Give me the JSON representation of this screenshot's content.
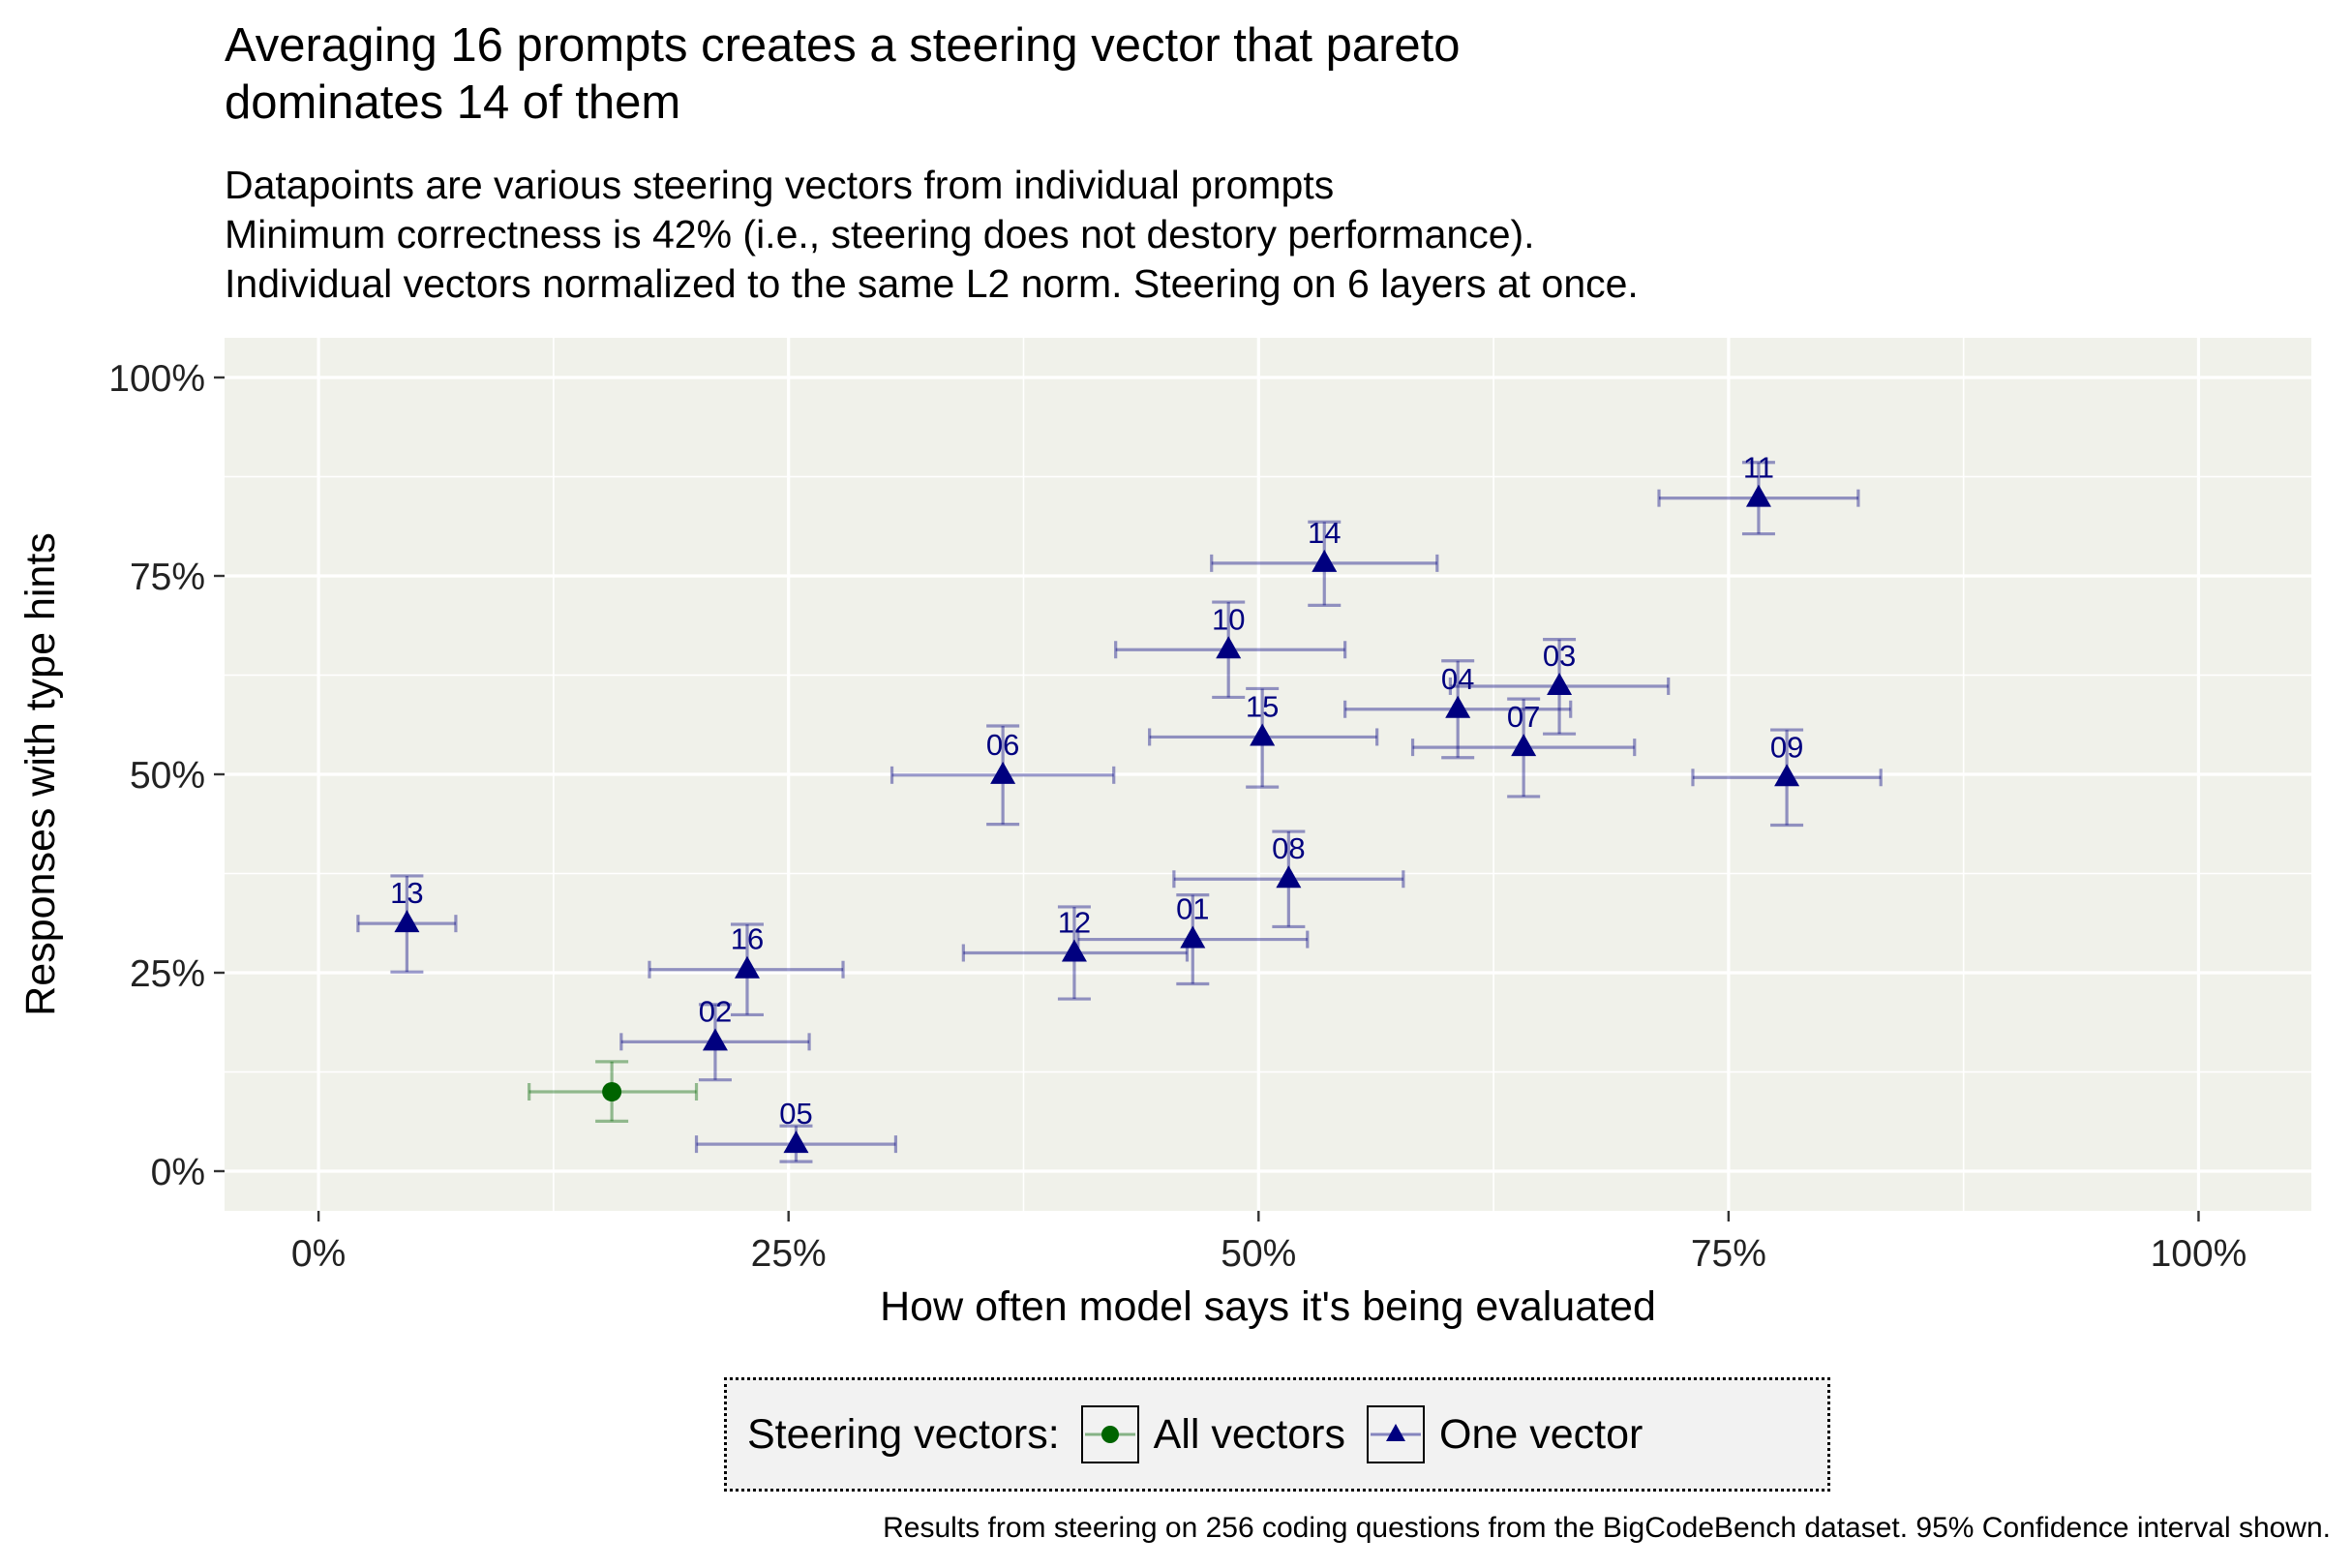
{
  "title_lines": [
    "Averaging 16 prompts creates a steering vector that pareto",
    "dominates 14 of them"
  ],
  "subtitle_lines": [
    "Datapoints are various steering vectors from individual prompts",
    "Minimum correctness is 42% (i.e., steering does not destory performance).",
    "Individual vectors normalized to the same L2 norm. Steering on 6 layers at once."
  ],
  "legend": {
    "title": "Steering vectors:",
    "items": [
      {
        "label": "All vectors",
        "shape": "circle",
        "color": "#006400"
      },
      {
        "label": "One vector",
        "shape": "triangle",
        "color": "#00007f"
      }
    ]
  },
  "caption": "Results from steering on 256 coding questions from the BigCodeBench dataset. 95% Confidence interval shown.",
  "colors": {
    "panel": "#f0f1ea",
    "grid": "#ffffff",
    "all_vectors": "#006400",
    "one_vector": "#00007f"
  },
  "chart_data": {
    "type": "scatter",
    "xlabel": "How often model says it's being evaluated",
    "ylabel": "Responses with type hints",
    "xlim": [
      -0.05,
      1.06
    ],
    "ylim": [
      -0.05,
      1.05
    ],
    "x_ticks": [
      0,
      0.25,
      0.5,
      0.75,
      1.0
    ],
    "y_ticks": [
      0,
      0.25,
      0.5,
      0.75,
      1.0
    ],
    "x_tick_labels": [
      "0%",
      "25%",
      "50%",
      "75%",
      "100%"
    ],
    "y_tick_labels": [
      "0%",
      "25%",
      "50%",
      "75%",
      "100%"
    ],
    "grid": true,
    "legend_position": "bottom",
    "series": [
      {
        "name": "All vectors",
        "shape": "circle",
        "points": [
          {
            "label": "",
            "x": 0.156,
            "y": 0.1,
            "x_lo": 0.112,
            "x_hi": 0.201,
            "y_lo": 0.063,
            "y_hi": 0.138
          }
        ]
      },
      {
        "name": "One vector",
        "shape": "triangle",
        "points": [
          {
            "label": "01",
            "x": 0.465,
            "y": 0.292,
            "x_lo": 0.404,
            "x_hi": 0.526,
            "y_lo": 0.236,
            "y_hi": 0.348
          },
          {
            "label": "02",
            "x": 0.211,
            "y": 0.163,
            "x_lo": 0.161,
            "x_hi": 0.261,
            "y_lo": 0.115,
            "y_hi": 0.21
          },
          {
            "label": "03",
            "x": 0.66,
            "y": 0.611,
            "x_lo": 0.602,
            "x_hi": 0.718,
            "y_lo": 0.551,
            "y_hi": 0.67
          },
          {
            "label": "04",
            "x": 0.606,
            "y": 0.582,
            "x_lo": 0.546,
            "x_hi": 0.666,
            "y_lo": 0.521,
            "y_hi": 0.643
          },
          {
            "label": "05",
            "x": 0.254,
            "y": 0.034,
            "x_lo": 0.201,
            "x_hi": 0.307,
            "y_lo": 0.012,
            "y_hi": 0.057
          },
          {
            "label": "06",
            "x": 0.364,
            "y": 0.499,
            "x_lo": 0.305,
            "x_hi": 0.423,
            "y_lo": 0.437,
            "y_hi": 0.561
          },
          {
            "label": "07",
            "x": 0.641,
            "y": 0.534,
            "x_lo": 0.582,
            "x_hi": 0.7,
            "y_lo": 0.472,
            "y_hi": 0.595
          },
          {
            "label": "08",
            "x": 0.516,
            "y": 0.368,
            "x_lo": 0.455,
            "x_hi": 0.577,
            "y_lo": 0.308,
            "y_hi": 0.428
          },
          {
            "label": "09",
            "x": 0.781,
            "y": 0.496,
            "x_lo": 0.731,
            "x_hi": 0.831,
            "y_lo": 0.436,
            "y_hi": 0.556
          },
          {
            "label": "10",
            "x": 0.484,
            "y": 0.657,
            "x_lo": 0.424,
            "x_hi": 0.546,
            "y_lo": 0.597,
            "y_hi": 0.717
          },
          {
            "label": "11",
            "x": 0.766,
            "y": 0.848,
            "x_lo": 0.713,
            "x_hi": 0.819,
            "y_lo": 0.803,
            "y_hi": 0.893
          },
          {
            "label": "12",
            "x": 0.402,
            "y": 0.275,
            "x_lo": 0.343,
            "x_hi": 0.462,
            "y_lo": 0.217,
            "y_hi": 0.333
          },
          {
            "label": "13",
            "x": 0.047,
            "y": 0.312,
            "x_lo": 0.021,
            "x_hi": 0.073,
            "y_lo": 0.251,
            "y_hi": 0.372
          },
          {
            "label": "14",
            "x": 0.535,
            "y": 0.766,
            "x_lo": 0.475,
            "x_hi": 0.595,
            "y_lo": 0.713,
            "y_hi": 0.818
          },
          {
            "label": "15",
            "x": 0.502,
            "y": 0.547,
            "x_lo": 0.442,
            "x_hi": 0.563,
            "y_lo": 0.484,
            "y_hi": 0.608
          },
          {
            "label": "16",
            "x": 0.228,
            "y": 0.254,
            "x_lo": 0.176,
            "x_hi": 0.279,
            "y_lo": 0.197,
            "y_hi": 0.311
          }
        ]
      }
    ]
  }
}
